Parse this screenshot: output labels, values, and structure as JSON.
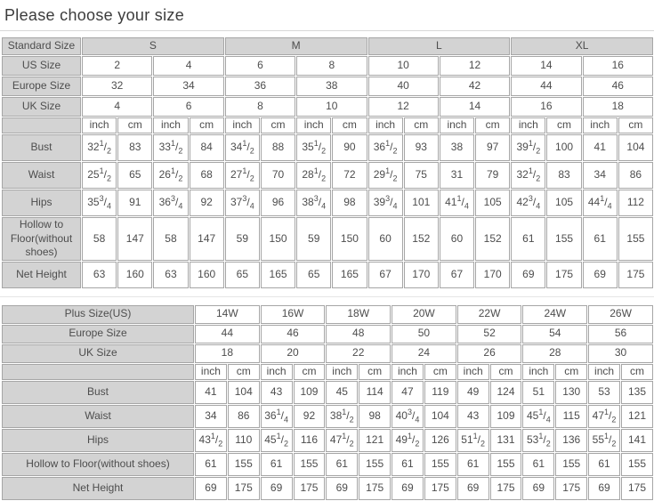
{
  "page": {
    "title": "Please choose your size"
  },
  "colors": {
    "header_bg": "#d3d3d3",
    "cell_border": "#a6a6a6",
    "table_text": "#4d4d4d",
    "title_text": "#3c3c3c",
    "divider": "#d8d8d8"
  },
  "standard_table": {
    "name": "standard-size-chart",
    "group_row": {
      "label": "Standard Size",
      "shaded": true,
      "groups": [
        "S",
        "M",
        "L",
        "XL"
      ]
    },
    "size_rows": [
      {
        "label": "US Size",
        "values": [
          "2",
          "4",
          "6",
          "8",
          "10",
          "12",
          "14",
          "16"
        ]
      },
      {
        "label": "Europe Size",
        "values": [
          "32",
          "34",
          "36",
          "38",
          "40",
          "42",
          "44",
          "46"
        ]
      },
      {
        "label": "UK Size",
        "values": [
          "4",
          "6",
          "8",
          "10",
          "12",
          "14",
          "16",
          "18"
        ]
      }
    ],
    "units": [
      "inch",
      "cm"
    ],
    "measure_rows": [
      {
        "label": "Bust",
        "values": [
          "32 1/2",
          "83",
          "33 1/2",
          "84",
          "34 1/2",
          "88",
          "35 1/2",
          "90",
          "36 1/2",
          "93",
          "38",
          "97",
          "39 1/2",
          "100",
          "41",
          "104"
        ]
      },
      {
        "label": "Waist",
        "values": [
          "25 1/2",
          "65",
          "26 1/2",
          "68",
          "27 1/2",
          "70",
          "28 1/2",
          "72",
          "29 1/2",
          "75",
          "31",
          "79",
          "32 1/2",
          "83",
          "34",
          "86"
        ]
      },
      {
        "label": "Hips",
        "values": [
          "35 3/4",
          "91",
          "36 3/4",
          "92",
          "37 3/4",
          "96",
          "38 3/4",
          "98",
          "39 3/4",
          "101",
          "41 1/4",
          "105",
          "42 3/4",
          "105",
          "44 1/4",
          "112"
        ]
      },
      {
        "label": "Hollow to Floor(without shoes)",
        "values": [
          "58",
          "147",
          "58",
          "147",
          "59",
          "150",
          "59",
          "150",
          "60",
          "152",
          "60",
          "152",
          "61",
          "155",
          "61",
          "155"
        ]
      },
      {
        "label": "Net Height",
        "values": [
          "63",
          "160",
          "63",
          "160",
          "65",
          "165",
          "65",
          "165",
          "67",
          "170",
          "67",
          "170",
          "69",
          "175",
          "69",
          "175"
        ]
      }
    ]
  },
  "plus_table": {
    "name": "plus-size-chart",
    "group_row": {
      "label": "Plus Size(US)",
      "shaded": false,
      "groups": [
        "14W",
        "16W",
        "18W",
        "20W",
        "22W",
        "24W",
        "26W"
      ]
    },
    "size_rows": [
      {
        "label": "Europe Size",
        "values": [
          "44",
          "46",
          "48",
          "50",
          "52",
          "54",
          "56"
        ]
      },
      {
        "label": "UK Size",
        "values": [
          "18",
          "20",
          "22",
          "24",
          "26",
          "28",
          "30"
        ]
      }
    ],
    "units": [
      "inch",
      "cm"
    ],
    "measure_rows": [
      {
        "label": "Bust",
        "values": [
          "41",
          "104",
          "43",
          "109",
          "45",
          "114",
          "47",
          "119",
          "49",
          "124",
          "51",
          "130",
          "53",
          "135"
        ]
      },
      {
        "label": "Waist",
        "values": [
          "34",
          "86",
          "36 1/4",
          "92",
          "38 1/2",
          "98",
          "40 3/4",
          "104",
          "43",
          "109",
          "45 1/4",
          "115",
          "47 1/2",
          "121"
        ]
      },
      {
        "label": "Hips",
        "values": [
          "43 1/2",
          "110",
          "45 1/2",
          "116",
          "47 1/2",
          "121",
          "49 1/2",
          "126",
          "51 1/2",
          "131",
          "53 1/2",
          "136",
          "55 1/2",
          "141"
        ]
      },
      {
        "label": "Hollow to Floor(without shoes)",
        "values": [
          "61",
          "155",
          "61",
          "155",
          "61",
          "155",
          "61",
          "155",
          "61",
          "155",
          "61",
          "155",
          "61",
          "155"
        ]
      },
      {
        "label": "Net Height",
        "values": [
          "69",
          "175",
          "69",
          "175",
          "69",
          "175",
          "69",
          "175",
          "69",
          "175",
          "69",
          "175",
          "69",
          "175"
        ]
      }
    ]
  }
}
